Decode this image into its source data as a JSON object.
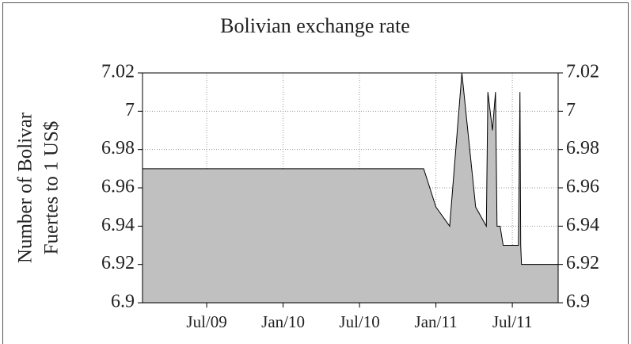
{
  "chart_data": {
    "type": "area",
    "title": "Bolivian exchange rate",
    "ylabel": [
      "Number of Bolivar",
      "Fuertes to 1 US$"
    ],
    "x": [
      2009.08,
      2010.92,
      2011.0,
      2011.09,
      2011.17,
      2011.26,
      2011.33,
      2011.34,
      2011.37,
      2011.39,
      2011.4,
      2011.42,
      2011.44,
      2011.54,
      2011.55,
      2011.555,
      2011.56,
      2011.8
    ],
    "values": [
      6.97,
      6.97,
      6.95,
      6.94,
      7.02,
      6.95,
      6.94,
      7.01,
      6.99,
      7.01,
      6.94,
      6.94,
      6.93,
      6.93,
      7.01,
      6.93,
      6.92,
      6.92
    ],
    "color": "#c0c0c0",
    "line_color": "#000000",
    "xlim": [
      2009.08,
      2011.8
    ],
    "xticks": [
      {
        "value": 2009.5,
        "label": "Jul/09"
      },
      {
        "value": 2010.0,
        "label": "Jan/10"
      },
      {
        "value": 2010.5,
        "label": "Jul/10"
      },
      {
        "value": 2011.0,
        "label": "Jan/11"
      },
      {
        "value": 2011.5,
        "label": "Jul/11"
      }
    ],
    "ylim": [
      6.9,
      7.02
    ],
    "yticks": [
      7.02,
      7,
      6.98,
      6.96,
      6.94,
      6.92,
      6.9
    ],
    "y2lim": [
      6.9,
      7.02
    ],
    "y2ticks": [
      7.02,
      7,
      6.98,
      6.96,
      6.94,
      6.92,
      6.9
    ],
    "grid": true
  }
}
